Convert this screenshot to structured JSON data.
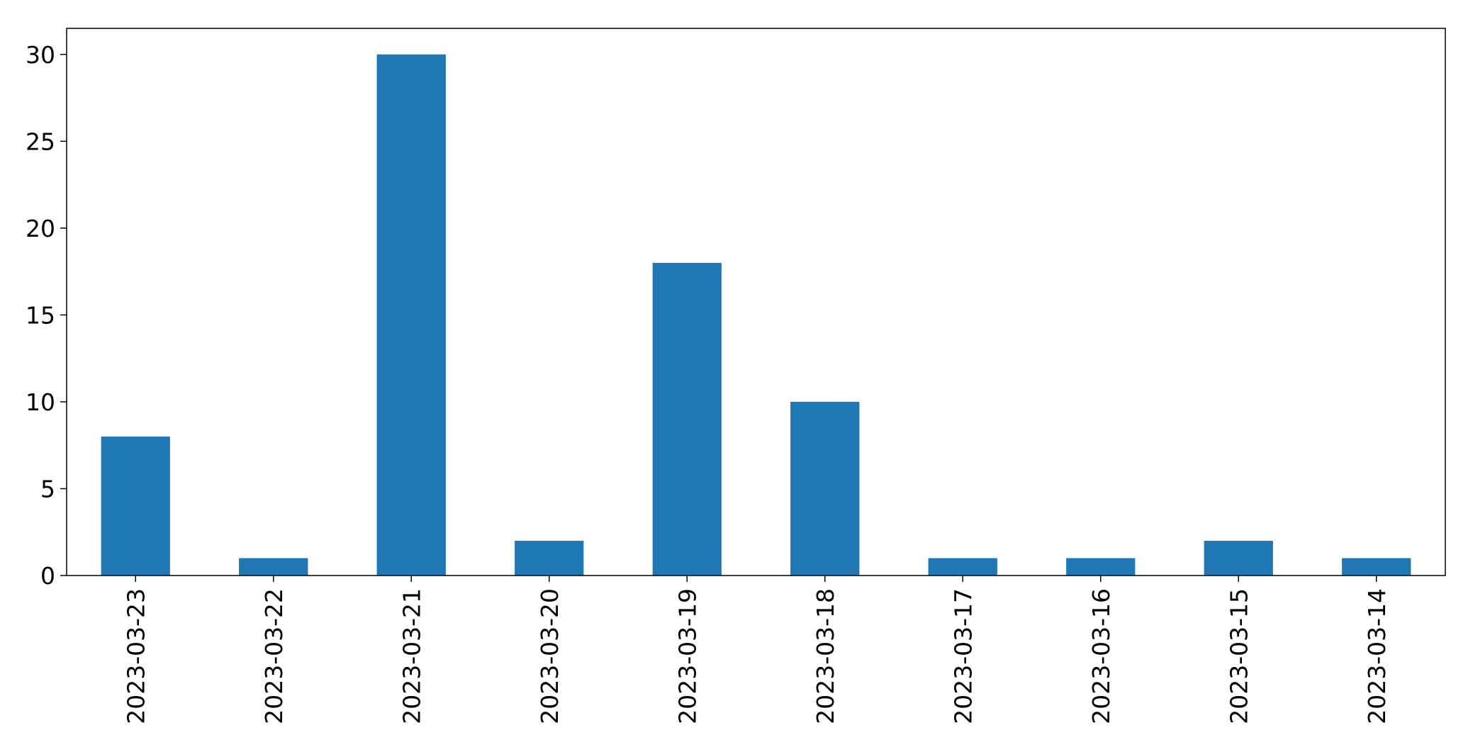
{
  "chart_data": {
    "type": "bar",
    "title": "",
    "xlabel": "",
    "ylabel": "",
    "categories": [
      "2023-03-23",
      "2023-03-22",
      "2023-03-21",
      "2023-03-20",
      "2023-03-19",
      "2023-03-18",
      "2023-03-17",
      "2023-03-16",
      "2023-03-15",
      "2023-03-14"
    ],
    "values": [
      8,
      1,
      30,
      2,
      18,
      10,
      1,
      1,
      2,
      1
    ],
    "ylim": [
      0,
      31.5
    ],
    "yticks": [
      0,
      5,
      10,
      15,
      20,
      25,
      30
    ],
    "x_tick_rotation": "vertical",
    "grid": false,
    "legend": "none",
    "bar_color": "#1f77b4"
  }
}
